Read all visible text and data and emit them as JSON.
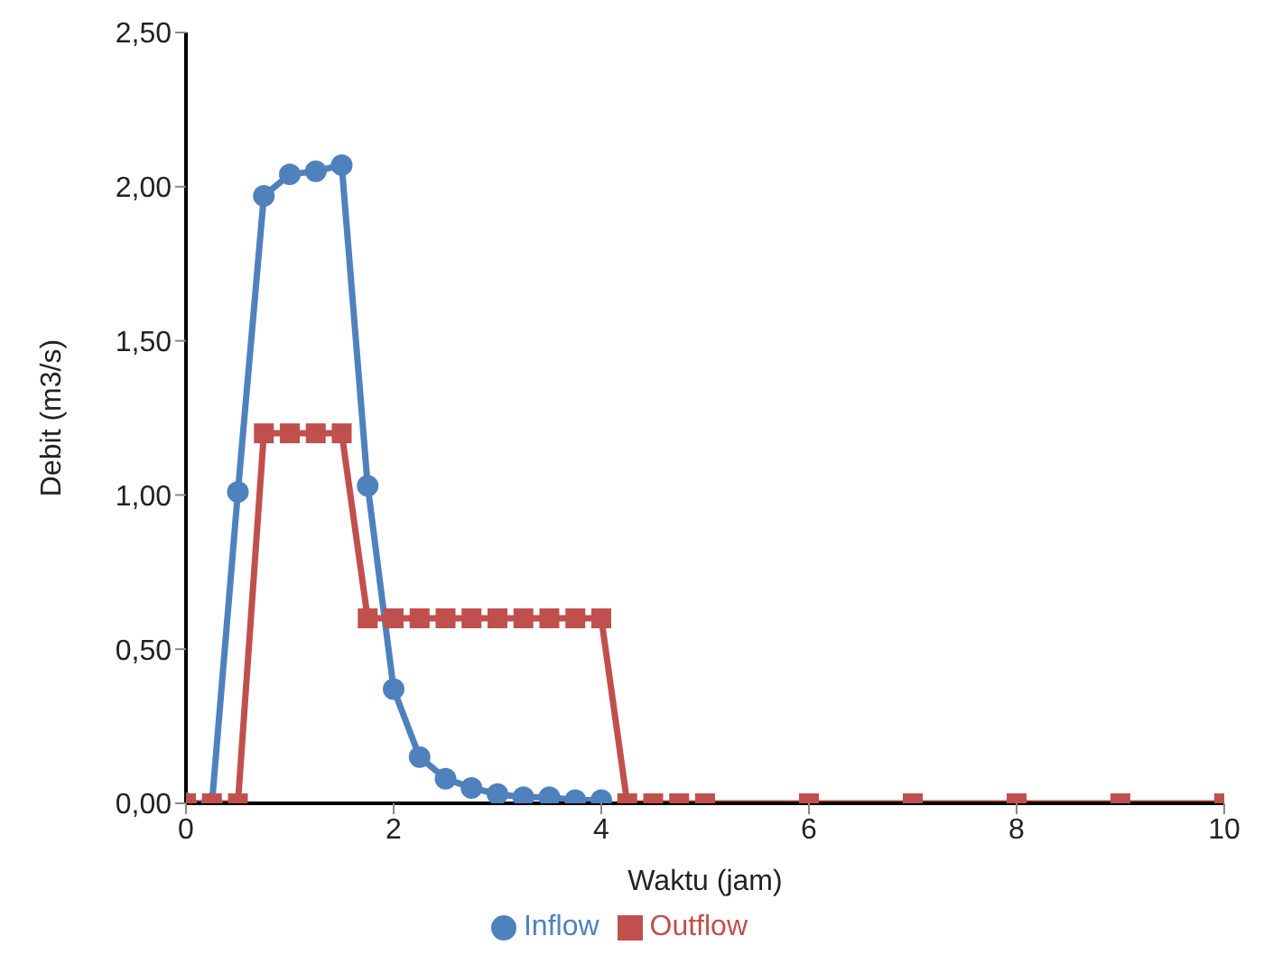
{
  "chart_data": {
    "type": "line",
    "xlabel": "Waktu (jam)",
    "ylabel": "Debit (m3/s)",
    "xlim": [
      0,
      10
    ],
    "xticks": [
      0,
      2,
      4,
      6,
      8,
      10
    ],
    "ylim": [
      0,
      2.5
    ],
    "yticks": [
      {
        "value": 0,
        "label": "0,00"
      },
      {
        "value": 0.5,
        "label": "0,50"
      },
      {
        "value": 1,
        "label": "1,00"
      },
      {
        "value": 1.5,
        "label": "1,50"
      },
      {
        "value": 2,
        "label": "2,00"
      },
      {
        "value": 2.5,
        "label": "2,50"
      }
    ],
    "grid": false,
    "legend": "bottom",
    "line_style": "solid",
    "series": [
      {
        "name": "Inflow",
        "color": "#4f81bd",
        "marker": "circle",
        "x": [
          0,
          0.25,
          0.5,
          0.75,
          1,
          1.25,
          1.5,
          1.75,
          2,
          2.25,
          2.5,
          2.75,
          3,
          3.25,
          3.5,
          3.75,
          4
        ],
        "values": [
          0,
          0,
          1.01,
          1.97,
          2.04,
          2.05,
          2.07,
          1.03,
          0.37,
          0.15,
          0.08,
          0.05,
          0.03,
          0.02,
          0.02,
          0.01,
          0.01
        ]
      },
      {
        "name": "Outflow",
        "color": "#c0504d",
        "marker": "square",
        "x": [
          0,
          0.25,
          0.5,
          0.75,
          1,
          1.25,
          1.5,
          1.75,
          2,
          2.25,
          2.5,
          2.75,
          3,
          3.25,
          3.5,
          3.75,
          4,
          4.25,
          4.5,
          4.75,
          5,
          6,
          7,
          8,
          9,
          10
        ],
        "values": [
          0,
          0,
          0,
          1.2,
          1.2,
          1.2,
          1.2,
          0.6,
          0.6,
          0.6,
          0.6,
          0.6,
          0.6,
          0.6,
          0.6,
          0.6,
          0.6,
          0,
          0,
          0,
          0,
          0,
          0,
          0,
          0,
          0
        ]
      }
    ]
  }
}
